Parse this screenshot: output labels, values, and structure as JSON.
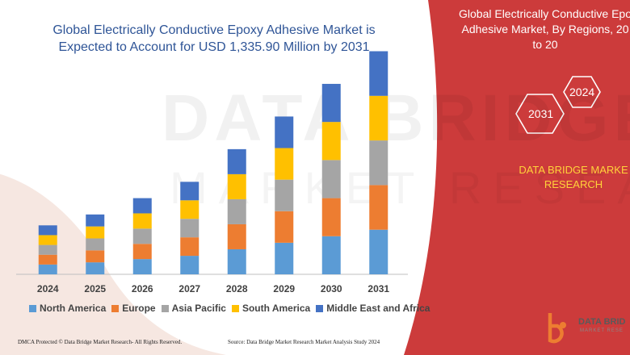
{
  "title_lines": [
    "Global Electrically Conductive Epoxy Adhesive Market is",
    "Expected to Account for USD 1,335.90 Million by 2031"
  ],
  "watermark": "DATA BRIDGE",
  "watermark_sub": "MARKET RESEARCH",
  "colors": {
    "panel": "#cc3b3b",
    "title": "#2f5597",
    "brand_text": "#ffd23a",
    "series": [
      "#5b9bd5",
      "#ed7d31",
      "#a5a5a5",
      "#ffc000",
      "#4472c4"
    ]
  },
  "chart_data": {
    "type": "bar",
    "stacked": true,
    "categories": [
      "2024",
      "2025",
      "2026",
      "2027",
      "2028",
      "2029",
      "2030",
      "2031"
    ],
    "series": [
      {
        "name": "North America",
        "values": [
          9,
          11,
          14,
          17,
          23,
          29,
          35,
          41
        ]
      },
      {
        "name": "Europe",
        "values": [
          9,
          11,
          14,
          17,
          23,
          29,
          35,
          41
        ]
      },
      {
        "name": "Asia Pacific",
        "values": [
          9,
          11,
          14,
          17,
          23,
          29,
          35,
          41
        ]
      },
      {
        "name": "South America",
        "values": [
          9,
          11,
          14,
          17,
          23,
          29,
          35,
          41
        ]
      },
      {
        "name": "Middle East and Africa",
        "values": [
          9,
          11,
          14,
          17,
          23,
          29,
          35,
          41
        ]
      }
    ],
    "ylim": [
      0,
      215
    ],
    "grid": false,
    "legend": "bottom"
  },
  "right_panel": {
    "title_lines": [
      "Global Electrically Conductive Epo",
      "Adhesive Market, By Regions, 20",
      "to 20"
    ],
    "hex_labels": [
      "2024",
      "2031"
    ],
    "brand_lines": [
      "DATA BRIDGE MARKE",
      "RESEARCH"
    ]
  },
  "logo": {
    "name": "DATA BRID",
    "sub": "MARKET RESE"
  },
  "footer": {
    "left": "DMCA Protected © Data Bridge Market Research- All Rights Reserved.",
    "right": "Source: Data Bridge Market Research Market Analysis Study 2024"
  }
}
